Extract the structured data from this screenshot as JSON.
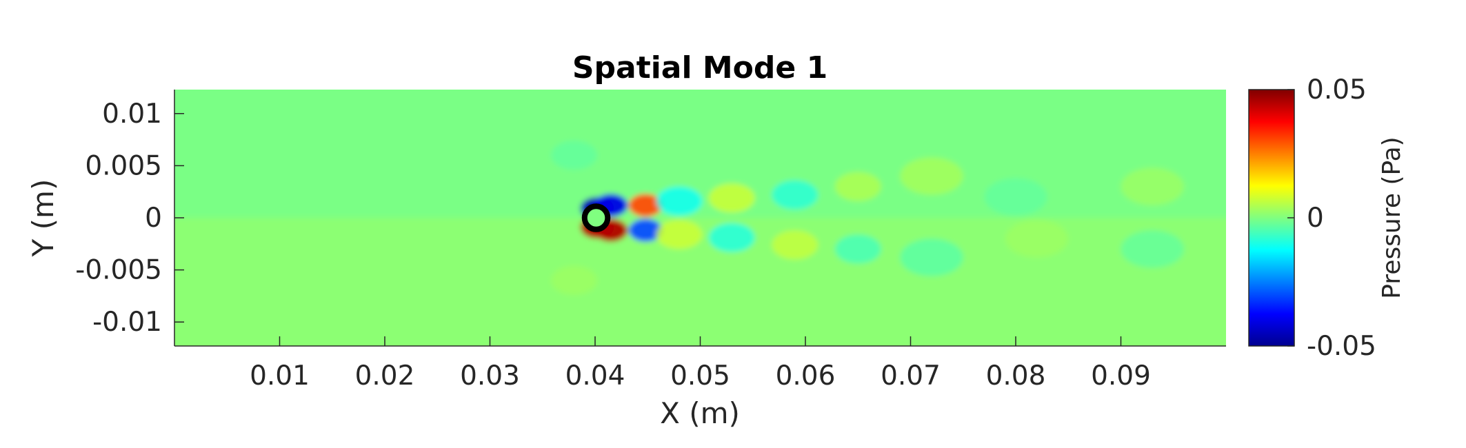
{
  "chart_data": {
    "type": "heatmap",
    "title": "Spatial Mode 1",
    "xlabel": "X (m)",
    "ylabel": "Y (m)",
    "xlim": [
      0,
      0.1
    ],
    "ylim": [
      -0.0123,
      0.0123
    ],
    "x_ticks": [
      "0.01",
      "0.02",
      "0.03",
      "0.04",
      "0.05",
      "0.06",
      "0.07",
      "0.08",
      "0.09"
    ],
    "x_tick_values": [
      0.01,
      0.02,
      0.03,
      0.04,
      0.05,
      0.06,
      0.07,
      0.08,
      0.09
    ],
    "y_ticks": [
      "0.01",
      "0.005",
      "0",
      "-0.005",
      "-0.01"
    ],
    "y_tick_values": [
      0.01,
      0.005,
      0,
      -0.005,
      -0.01
    ],
    "colorbar": {
      "label": "Pressure (Pa)",
      "colormap": "jet",
      "range": [
        -0.05,
        0.05
      ],
      "ticks": [
        "0.05",
        "0",
        "-0.05"
      ],
      "tick_values": [
        0.05,
        0,
        -0.05
      ]
    },
    "cylinder": {
      "x": 0.0401,
      "y": 0.0,
      "radius": 0.0011
    },
    "field_features": [
      {
        "x": 0.0402,
        "y": 0.0009,
        "value": -0.045
      },
      {
        "x": 0.0415,
        "y": 0.0012,
        "value": -0.04
      },
      {
        "x": 0.0402,
        "y": -0.0009,
        "value": 0.045
      },
      {
        "x": 0.0415,
        "y": -0.0012,
        "value": 0.045
      },
      {
        "x": 0.0448,
        "y": 0.0012,
        "value": 0.03
      },
      {
        "x": 0.0448,
        "y": -0.0012,
        "value": -0.03
      },
      {
        "x": 0.048,
        "y": 0.0016,
        "value": -0.012
      },
      {
        "x": 0.048,
        "y": -0.0016,
        "value": 0.008
      },
      {
        "x": 0.053,
        "y": 0.0019,
        "value": 0.008
      },
      {
        "x": 0.053,
        "y": -0.0019,
        "value": -0.01
      },
      {
        "x": 0.059,
        "y": 0.0022,
        "value": -0.009
      },
      {
        "x": 0.059,
        "y": -0.0026,
        "value": 0.007
      },
      {
        "x": 0.065,
        "y": 0.003,
        "value": 0.005
      },
      {
        "x": 0.065,
        "y": -0.003,
        "value": -0.006
      },
      {
        "x": 0.072,
        "y": 0.004,
        "value": 0.004
      },
      {
        "x": 0.072,
        "y": -0.0038,
        "value": -0.004
      },
      {
        "x": 0.08,
        "y": 0.002,
        "value": -0.003
      },
      {
        "x": 0.082,
        "y": -0.002,
        "value": 0.003
      },
      {
        "x": 0.093,
        "y": 0.003,
        "value": 0.003
      },
      {
        "x": 0.093,
        "y": -0.003,
        "value": -0.003
      },
      {
        "x": 0.038,
        "y": 0.006,
        "value": -0.003
      },
      {
        "x": 0.038,
        "y": -0.006,
        "value": 0.003
      }
    ],
    "background_value_upper": -0.0005,
    "background_value_lower": 0.0012,
    "grid": false
  }
}
